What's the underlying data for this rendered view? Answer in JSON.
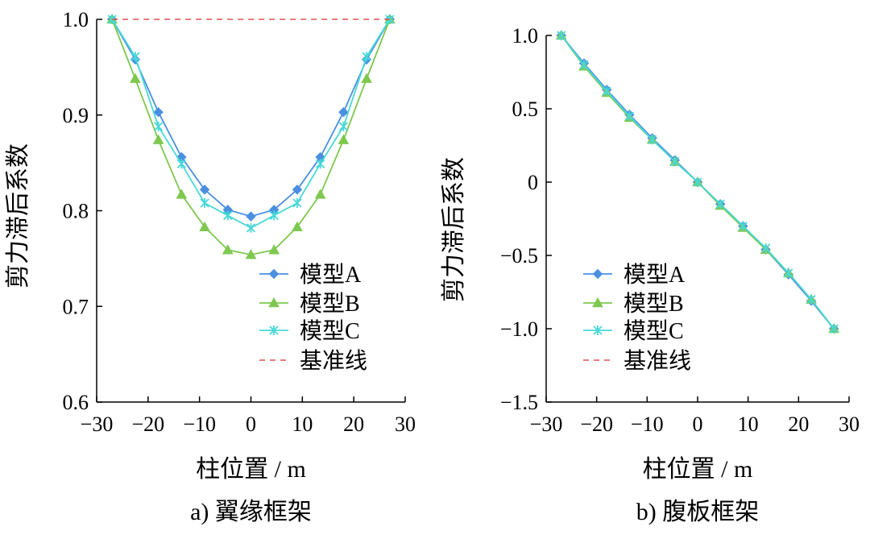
{
  "colors": {
    "model_a": "#4a8fe0",
    "model_b": "#7ec850",
    "model_c": "#48d8d8",
    "baseline": "#e05050"
  },
  "chart_data": [
    {
      "type": "line",
      "caption": "a)  翼缘框架",
      "xlabel": "柱位置 / m",
      "ylabel": "剪力滞后系数",
      "xlim": [
        -30,
        30
      ],
      "ylim": [
        0.6,
        1.0
      ],
      "xticks": [
        -30,
        -20,
        -10,
        0,
        10,
        20,
        30
      ],
      "yticks": [
        0.6,
        0.7,
        0.8,
        0.9,
        1.0
      ],
      "xtick_labels": [
        "−30",
        "−20",
        "−10",
        "0",
        "10",
        "20",
        "30"
      ],
      "ytick_labels": [
        "0.6",
        "0.7",
        "0.8",
        "0.9",
        "1.0"
      ],
      "legend_position": "bottom-right",
      "series": [
        {
          "name": "模型A",
          "marker": "diamond",
          "color_key": "model_a",
          "x": [
            -27,
            -22.5,
            -18,
            -13.5,
            -9,
            -4.5,
            0,
            4.5,
            9,
            13.5,
            18,
            22.5,
            27
          ],
          "y": [
            1.0,
            0.958,
            0.903,
            0.856,
            0.822,
            0.801,
            0.794,
            0.801,
            0.822,
            0.856,
            0.903,
            0.958,
            1.0
          ]
        },
        {
          "name": "模型B",
          "marker": "triangle",
          "color_key": "model_b",
          "x": [
            -27,
            -22.5,
            -18,
            -13.5,
            -9,
            -4.5,
            0,
            4.5,
            9,
            13.5,
            18,
            22.5,
            27
          ],
          "y": [
            1.0,
            0.938,
            0.874,
            0.817,
            0.783,
            0.759,
            0.754,
            0.759,
            0.783,
            0.817,
            0.874,
            0.938,
            1.0
          ]
        },
        {
          "name": "模型C",
          "marker": "asterisk",
          "color_key": "model_c",
          "x": [
            -27,
            -22.5,
            -18,
            -13.5,
            -9,
            -4.5,
            0,
            4.5,
            9,
            13.5,
            18,
            22.5,
            27
          ],
          "y": [
            1.0,
            0.961,
            0.888,
            0.849,
            0.808,
            0.795,
            0.782,
            0.795,
            0.808,
            0.849,
            0.888,
            0.961,
            1.0
          ]
        },
        {
          "name": "基准线",
          "marker": "none",
          "dashed": true,
          "color_key": "baseline",
          "x": [
            -27,
            27
          ],
          "y": [
            1.0,
            1.0
          ]
        }
      ]
    },
    {
      "type": "line",
      "caption": "b)  腹板框架",
      "xlabel": "柱位置 / m",
      "ylabel": "剪力滞后系数",
      "xlim": [
        -30,
        30
      ],
      "ylim": [
        -1.5,
        1.0
      ],
      "xticks": [
        -30,
        -20,
        -10,
        0,
        10,
        20,
        30
      ],
      "yticks": [
        -1.5,
        -1.0,
        -0.5,
        0,
        0.5,
        1.0
      ],
      "xtick_labels": [
        "−30",
        "−20",
        "−10",
        "0",
        "10",
        "20",
        "30"
      ],
      "ytick_labels": [
        "−1.5",
        "−1.0",
        "−0.5",
        "0",
        "0.5",
        "1.0"
      ],
      "legend_position": "bottom-left",
      "series": [
        {
          "name": "模型A",
          "marker": "diamond",
          "color_key": "model_a",
          "x": [
            -27,
            -22.5,
            -18,
            -13.5,
            -9,
            -4.5,
            0,
            4.5,
            9,
            13.5,
            18,
            22.5,
            27
          ],
          "y": [
            1.0,
            0.81,
            0.63,
            0.46,
            0.3,
            0.15,
            0.0,
            -0.15,
            -0.3,
            -0.46,
            -0.63,
            -0.81,
            -1.0
          ]
        },
        {
          "name": "模型B",
          "marker": "triangle",
          "color_key": "model_b",
          "x": [
            -27,
            -22.5,
            -18,
            -13.5,
            -9,
            -4.5,
            0,
            4.5,
            9,
            13.5,
            18,
            22.5,
            27
          ],
          "y": [
            1.0,
            0.79,
            0.61,
            0.44,
            0.29,
            0.14,
            0.0,
            -0.16,
            -0.31,
            -0.46,
            -0.62,
            -0.8,
            -1.0
          ]
        },
        {
          "name": "模型C",
          "marker": "asterisk",
          "color_key": "model_c",
          "x": [
            -27,
            -22.5,
            -18,
            -13.5,
            -9,
            -4.5,
            0,
            4.5,
            9,
            13.5,
            18,
            22.5,
            27
          ],
          "y": [
            1.0,
            0.8,
            0.62,
            0.45,
            0.29,
            0.14,
            0.0,
            -0.15,
            -0.3,
            -0.45,
            -0.62,
            -0.8,
            -1.0
          ]
        },
        {
          "name": "基准线",
          "marker": "none",
          "dashed": true,
          "color_key": "baseline",
          "x": [],
          "y": []
        }
      ]
    }
  ]
}
